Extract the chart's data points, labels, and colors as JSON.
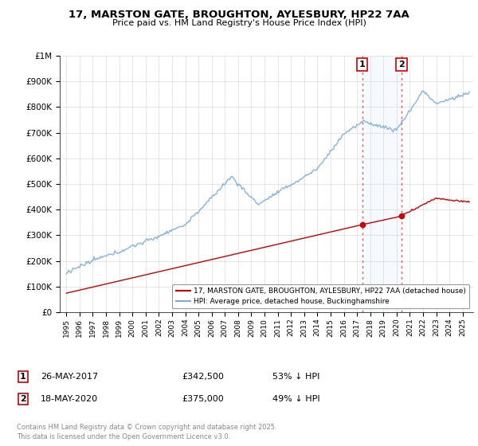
{
  "title": "17, MARSTON GATE, BROUGHTON, AYLESBURY, HP22 7AA",
  "subtitle": "Price paid vs. HM Land Registry's House Price Index (HPI)",
  "ylabel_ticks": [
    "£0",
    "£100K",
    "£200K",
    "£300K",
    "£400K",
    "£500K",
    "£600K",
    "£700K",
    "£800K",
    "£900K",
    "£1M"
  ],
  "ytick_values": [
    0,
    100000,
    200000,
    300000,
    400000,
    500000,
    600000,
    700000,
    800000,
    900000,
    1000000
  ],
  "ylim": [
    0,
    1000000
  ],
  "xlim_start": 1994.5,
  "xlim_end": 2025.8,
  "hpi_color": "#7aaadd",
  "price_color": "#cc0000",
  "sale1_x": 2017.395,
  "sale1_y": 342500,
  "sale2_x": 2020.378,
  "sale2_y": 375000,
  "vline_color": "#ee5555",
  "vline_style": "--",
  "shaded_region_color": "#ddeeff",
  "legend_line1": "17, MARSTON GATE, BROUGHTON, AYLESBURY, HP22 7AA (detached house)",
  "legend_line2": "HPI: Average price, detached house, Buckinghamshire",
  "table_row1": [
    "1",
    "26-MAY-2017",
    "£342,500",
    "53% ↓ HPI"
  ],
  "table_row2": [
    "2",
    "18-MAY-2020",
    "£375,000",
    "49% ↓ HPI"
  ],
  "footer": "Contains HM Land Registry data © Crown copyright and database right 2025.\nThis data is licensed under the Open Government Licence v3.0.",
  "bg_color": "#ffffff",
  "plot_bg": "#ffffff",
  "grid_color": "#cccccc"
}
